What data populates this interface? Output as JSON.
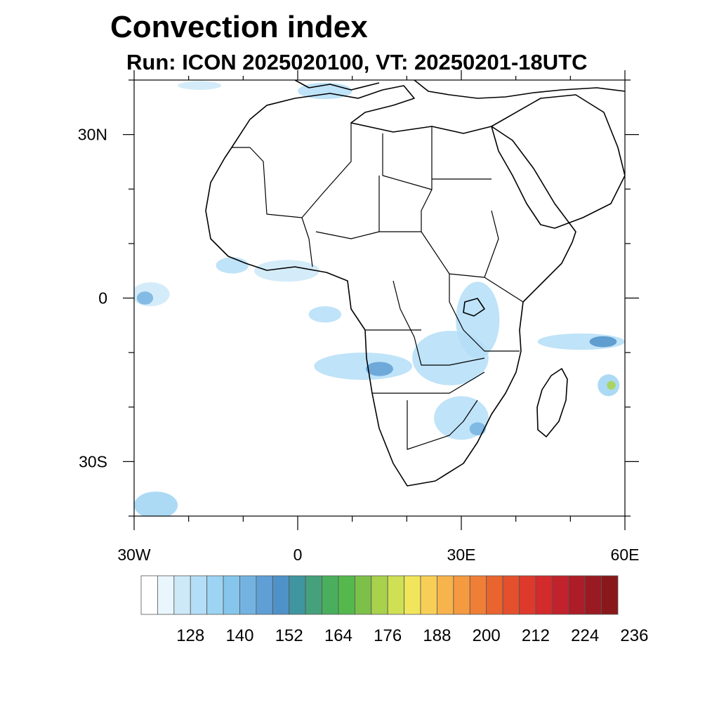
{
  "title": "Convection index",
  "subtitle": "Run: ICON 2025020100,  VT: 20250201-18UTC",
  "map": {
    "region": "Africa",
    "lon_range": [
      -30,
      60
    ],
    "lat_range": [
      -40,
      40
    ],
    "lat_ticks": [
      {
        "value": 30,
        "label": "30N"
      },
      {
        "value": 0,
        "label": "0"
      },
      {
        "value": -30,
        "label": "30S"
      }
    ],
    "lon_ticks": [
      {
        "value": -30,
        "label": "30W"
      },
      {
        "value": 0,
        "label": "0"
      },
      {
        "value": 30,
        "label": "30E"
      },
      {
        "value": 60,
        "label": "60E"
      }
    ],
    "minor_lat_ticks": [
      40,
      20,
      10,
      -10,
      -20,
      -40
    ],
    "minor_lon_ticks": [
      -20,
      -10,
      10,
      20,
      40,
      50
    ],
    "coastline_color": "#000000",
    "convection_areas": [
      {
        "lon": -27,
        "lat": 0.7,
        "rx": 3.5,
        "ry": 2.2,
        "level": 2
      },
      {
        "lon": -28,
        "lat": 0,
        "rx": 1.5,
        "ry": 1.2,
        "level": 6
      },
      {
        "lon": 12,
        "lat": -12.5,
        "rx": 9,
        "ry": 2.5,
        "level": 3
      },
      {
        "lon": 15,
        "lat": -13,
        "rx": 2.5,
        "ry": 1.3,
        "level": 7
      },
      {
        "lon": 28,
        "lat": -11,
        "rx": 7,
        "ry": 5,
        "level": 3
      },
      {
        "lon": 33,
        "lat": -4,
        "rx": 4,
        "ry": 7,
        "level": 3
      },
      {
        "lon": 30,
        "lat": -22,
        "rx": 5,
        "ry": 4,
        "level": 3
      },
      {
        "lon": 33,
        "lat": -24,
        "rx": 1.5,
        "ry": 1.2,
        "level": 6
      },
      {
        "lon": 52,
        "lat": -8,
        "rx": 8,
        "ry": 1.5,
        "level": 3
      },
      {
        "lon": 56,
        "lat": -8,
        "rx": 2.5,
        "ry": 1,
        "level": 8
      },
      {
        "lon": 57,
        "lat": -16,
        "rx": 2,
        "ry": 2,
        "level": 4
      },
      {
        "lon": 57.5,
        "lat": -16,
        "rx": 0.8,
        "ry": 0.8,
        "level": 14
      },
      {
        "lon": -2,
        "lat": 5,
        "rx": 6,
        "ry": 2,
        "level": 2
      },
      {
        "lon": -12,
        "lat": 6,
        "rx": 3,
        "ry": 1.5,
        "level": 3
      },
      {
        "lon": 5,
        "lat": -3,
        "rx": 3,
        "ry": 1.5,
        "level": 3
      },
      {
        "lon": 5,
        "lat": 38,
        "rx": 5,
        "ry": 1.5,
        "level": 3
      },
      {
        "lon": -18,
        "lat": 39,
        "rx": 4,
        "ry": 0.8,
        "level": 2
      },
      {
        "lon": -26,
        "lat": -38,
        "rx": 4,
        "ry": 2.5,
        "level": 4
      }
    ]
  },
  "colorbar": {
    "colors": [
      "#ffffff",
      "#eaf6fd",
      "#cde9f8",
      "#b4def7",
      "#9dd4f3",
      "#86c6ec",
      "#74b3e1",
      "#5f9fd5",
      "#4f92c8",
      "#3f96a0",
      "#45a17b",
      "#4aaf5c",
      "#55b84d",
      "#7cc04a",
      "#a8d14c",
      "#cfe055",
      "#f1e55b",
      "#f8cf56",
      "#f7b44c",
      "#f49a41",
      "#ef7e36",
      "#e9642f",
      "#e4502d",
      "#dd3a2c",
      "#d32a2c",
      "#c1222b",
      "#ad1d27",
      "#9a1a23",
      "#881819"
    ],
    "labels": [
      "128",
      "140",
      "152",
      "164",
      "176",
      "188",
      "200",
      "212",
      "224",
      "236"
    ]
  }
}
